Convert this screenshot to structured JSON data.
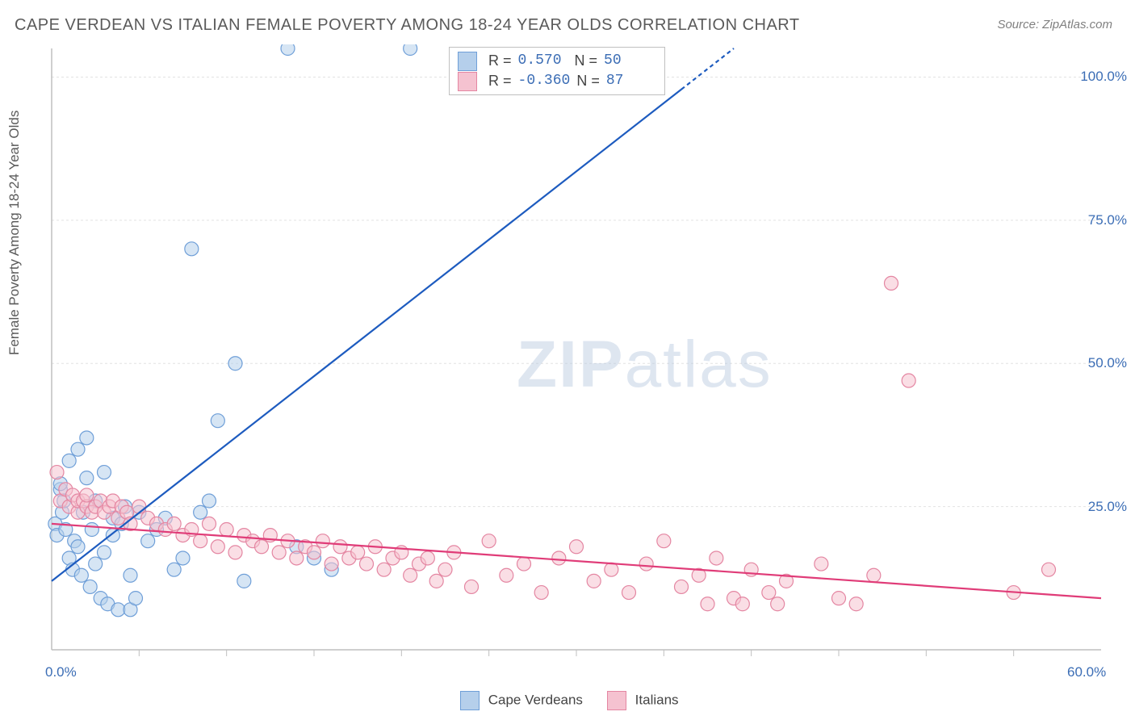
{
  "title": "CAPE VERDEAN VS ITALIAN FEMALE POVERTY AMONG 18-24 YEAR OLDS CORRELATION CHART",
  "source": "Source: ZipAtlas.com",
  "watermark_a": "ZIP",
  "watermark_b": "atlas",
  "y_axis_label": "Female Poverty Among 18-24 Year Olds",
  "chart": {
    "type": "scatter",
    "xlim": [
      0,
      60
    ],
    "ylim": [
      0,
      105
    ],
    "x_ticks": [
      0,
      60
    ],
    "x_tick_labels": [
      "0.0%",
      "60.0%"
    ],
    "x_minor_ticks": [
      5,
      10,
      15,
      20,
      25,
      30,
      35,
      40,
      45,
      50,
      55
    ],
    "y_ticks": [
      25,
      50,
      75,
      100
    ],
    "y_tick_labels": [
      "25.0%",
      "50.0%",
      "75.0%",
      "100.0%"
    ],
    "background_color": "#ffffff",
    "grid_color": "#e2e2e2",
    "axis_color": "#bfbfbf",
    "marker_radius": 8.5,
    "marker_stroke_width": 1.2,
    "line_width": 2.2,
    "series": [
      {
        "name": "Cape Verdeans",
        "fill": "#b5cfeb",
        "fill_opacity": 0.55,
        "stroke": "#6f9fd8",
        "line_color": "#1d5bbf",
        "r_value": "0.570",
        "n_value": "50",
        "regression": {
          "x1": 0,
          "y1": 12,
          "x2": 39,
          "y2": 105,
          "dashed_after_x": 36
        },
        "points": [
          [
            0.2,
            22
          ],
          [
            0.3,
            20
          ],
          [
            0.5,
            28
          ],
          [
            0.5,
            29
          ],
          [
            0.6,
            24
          ],
          [
            0.7,
            26
          ],
          [
            0.8,
            21
          ],
          [
            1.0,
            16
          ],
          [
            1.0,
            33
          ],
          [
            1.2,
            14
          ],
          [
            1.3,
            19
          ],
          [
            1.5,
            18
          ],
          [
            1.5,
            35
          ],
          [
            1.7,
            13
          ],
          [
            1.8,
            24
          ],
          [
            2.0,
            30
          ],
          [
            2.0,
            37
          ],
          [
            2.2,
            11
          ],
          [
            2.3,
            21
          ],
          [
            2.5,
            15
          ],
          [
            2.5,
            26
          ],
          [
            2.8,
            9
          ],
          [
            3.0,
            17
          ],
          [
            3.0,
            31
          ],
          [
            3.2,
            8
          ],
          [
            3.5,
            20
          ],
          [
            3.5,
            23
          ],
          [
            3.8,
            7
          ],
          [
            4.0,
            22
          ],
          [
            4.2,
            25
          ],
          [
            4.5,
            7
          ],
          [
            4.5,
            13
          ],
          [
            4.8,
            9
          ],
          [
            5.0,
            24
          ],
          [
            5.5,
            19
          ],
          [
            6.0,
            21
          ],
          [
            6.5,
            23
          ],
          [
            7.0,
            14
          ],
          [
            7.5,
            16
          ],
          [
            8.0,
            70
          ],
          [
            8.5,
            24
          ],
          [
            9.0,
            26
          ],
          [
            9.5,
            40
          ],
          [
            10.5,
            50
          ],
          [
            11.0,
            12
          ],
          [
            13.5,
            105
          ],
          [
            14.0,
            18
          ],
          [
            15.0,
            16
          ],
          [
            16.0,
            14
          ],
          [
            20.5,
            105
          ]
        ]
      },
      {
        "name": "Italians",
        "fill": "#f5c2d0",
        "fill_opacity": 0.55,
        "stroke": "#e486a2",
        "line_color": "#e03c78",
        "r_value": "-0.360",
        "n_value": "87",
        "regression": {
          "x1": 0,
          "y1": 22,
          "x2": 60,
          "y2": 9
        },
        "points": [
          [
            0.3,
            31
          ],
          [
            0.5,
            26
          ],
          [
            0.8,
            28
          ],
          [
            1.0,
            25
          ],
          [
            1.2,
            27
          ],
          [
            1.5,
            24
          ],
          [
            1.5,
            26
          ],
          [
            1.8,
            26
          ],
          [
            2.0,
            25
          ],
          [
            2.0,
            27
          ],
          [
            2.3,
            24
          ],
          [
            2.5,
            25
          ],
          [
            2.8,
            26
          ],
          [
            3.0,
            24
          ],
          [
            3.3,
            25
          ],
          [
            3.5,
            26
          ],
          [
            3.8,
            23
          ],
          [
            4.0,
            25
          ],
          [
            4.3,
            24
          ],
          [
            4.5,
            22
          ],
          [
            5.0,
            25
          ],
          [
            5.5,
            23
          ],
          [
            6.0,
            22
          ],
          [
            6.5,
            21
          ],
          [
            7.0,
            22
          ],
          [
            7.5,
            20
          ],
          [
            8.0,
            21
          ],
          [
            8.5,
            19
          ],
          [
            9.0,
            22
          ],
          [
            9.5,
            18
          ],
          [
            10.0,
            21
          ],
          [
            10.5,
            17
          ],
          [
            11.0,
            20
          ],
          [
            11.5,
            19
          ],
          [
            12.0,
            18
          ],
          [
            12.5,
            20
          ],
          [
            13.0,
            17
          ],
          [
            13.5,
            19
          ],
          [
            14.0,
            16
          ],
          [
            14.5,
            18
          ],
          [
            15.0,
            17
          ],
          [
            15.5,
            19
          ],
          [
            16.0,
            15
          ],
          [
            16.5,
            18
          ],
          [
            17.0,
            16
          ],
          [
            17.5,
            17
          ],
          [
            18.0,
            15
          ],
          [
            18.5,
            18
          ],
          [
            19.0,
            14
          ],
          [
            19.5,
            16
          ],
          [
            20.0,
            17
          ],
          [
            20.5,
            13
          ],
          [
            21.0,
            15
          ],
          [
            21.5,
            16
          ],
          [
            22.0,
            12
          ],
          [
            22.5,
            14
          ],
          [
            23.0,
            17
          ],
          [
            24.0,
            11
          ],
          [
            25.0,
            19
          ],
          [
            26.0,
            13
          ],
          [
            27.0,
            15
          ],
          [
            28.0,
            10
          ],
          [
            29.0,
            16
          ],
          [
            30.0,
            18
          ],
          [
            31.0,
            12
          ],
          [
            32.0,
            14
          ],
          [
            33.0,
            10
          ],
          [
            34.0,
            15
          ],
          [
            35.0,
            19
          ],
          [
            36.0,
            11
          ],
          [
            37.0,
            13
          ],
          [
            37.5,
            8
          ],
          [
            38.0,
            16
          ],
          [
            39.0,
            9
          ],
          [
            39.5,
            8
          ],
          [
            40.0,
            14
          ],
          [
            41.0,
            10
          ],
          [
            41.5,
            8
          ],
          [
            42.0,
            12
          ],
          [
            44.0,
            15
          ],
          [
            45.0,
            9
          ],
          [
            46.0,
            8
          ],
          [
            47.0,
            13
          ],
          [
            48.0,
            64
          ],
          [
            49.0,
            47
          ],
          [
            55.0,
            10
          ],
          [
            57.0,
            14
          ]
        ]
      }
    ]
  },
  "bottom_legend": [
    {
      "label": "Cape Verdeans",
      "fill": "#b5cfeb",
      "stroke": "#6f9fd8"
    },
    {
      "label": "Italians",
      "fill": "#f5c2d0",
      "stroke": "#e486a2"
    }
  ]
}
